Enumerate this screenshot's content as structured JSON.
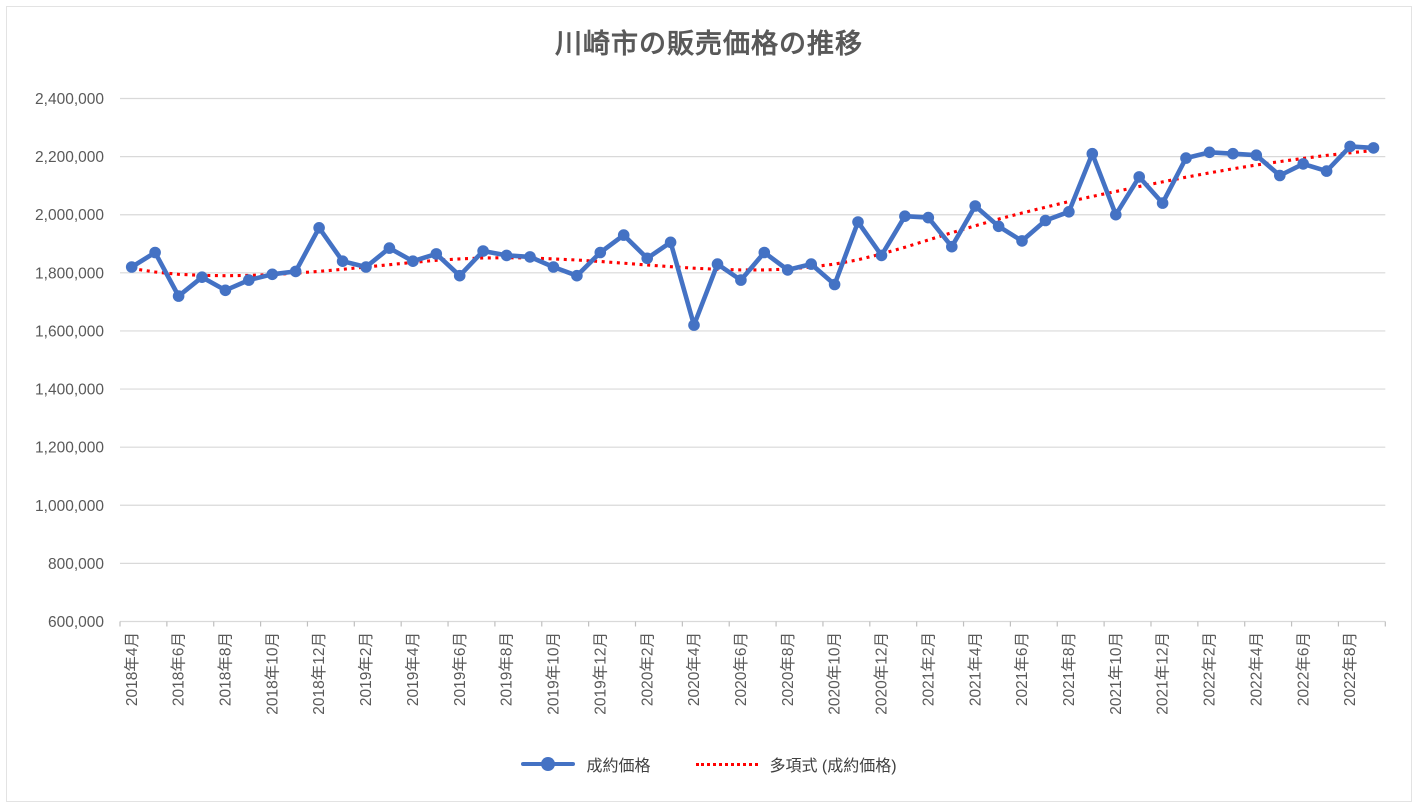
{
  "chart_data": {
    "type": "line",
    "title": "川崎市の販売価格の推移",
    "grid": true,
    "legend_position": "bottom",
    "ylim": [
      600000,
      2400000
    ],
    "y_tick_step": 200000,
    "y_ticks": [
      {
        "value": 600000,
        "label": "600,000"
      },
      {
        "value": 800000,
        "label": "800,000"
      },
      {
        "value": 1000000,
        "label": "1,000,000"
      },
      {
        "value": 1200000,
        "label": "1,200,000"
      },
      {
        "value": 1400000,
        "label": "1,400,000"
      },
      {
        "value": 1600000,
        "label": "1,600,000"
      },
      {
        "value": 1800000,
        "label": "1,800,000"
      },
      {
        "value": 2000000,
        "label": "2,000,000"
      },
      {
        "value": 2200000,
        "label": "2,200,000"
      },
      {
        "value": 2400000,
        "label": "2,400,000"
      }
    ],
    "x": [
      "2018年4月",
      "2018年5月",
      "2018年6月",
      "2018年7月",
      "2018年8月",
      "2018年9月",
      "2018年10月",
      "2018年11月",
      "2018年12月",
      "2019年1月",
      "2019年2月",
      "2019年3月",
      "2019年4月",
      "2019年5月",
      "2019年6月",
      "2019年7月",
      "2019年8月",
      "2019年9月",
      "2019年10月",
      "2019年11月",
      "2019年12月",
      "2020年1月",
      "2020年2月",
      "2020年3月",
      "2020年4月",
      "2020年5月",
      "2020年6月",
      "2020年7月",
      "2020年8月",
      "2020年9月",
      "2020年10月",
      "2020年11月",
      "2020年12月",
      "2021年1月",
      "2021年2月",
      "2021年3月",
      "2021年4月",
      "2021年5月",
      "2021年6月",
      "2021年7月",
      "2021年8月",
      "2021年9月",
      "2021年10月",
      "2021年11月",
      "2021年12月",
      "2022年1月",
      "2022年2月",
      "2022年3月",
      "2022年4月",
      "2022年5月",
      "2022年6月",
      "2022年7月",
      "2022年8月",
      "2022年9月"
    ],
    "x_tick_labels": [
      "2018年4月",
      "2018年6月",
      "2018年8月",
      "2018年10月",
      "2018年12月",
      "2019年2月",
      "2019年4月",
      "2019年6月",
      "2019年8月",
      "2019年10月",
      "2019年12月",
      "2020年2月",
      "2020年4月",
      "2020年6月",
      "2020年8月",
      "2020年10月",
      "2020年12月",
      "2021年2月",
      "2021年4月",
      "2021年6月",
      "2021年8月",
      "2021年10月",
      "2021年12月",
      "2022年2月",
      "2022年4月",
      "2022年6月",
      "2022年8月"
    ],
    "series": [
      {
        "name": "成約価格",
        "color": "#4472C4",
        "style": "solid-with-markers",
        "values": [
          1820000,
          1870000,
          1720000,
          1785000,
          1740000,
          1775000,
          1795000,
          1805000,
          1955000,
          1840000,
          1820000,
          1885000,
          1840000,
          1865000,
          1790000,
          1875000,
          1860000,
          1855000,
          1820000,
          1790000,
          1870000,
          1930000,
          1850000,
          1905000,
          1620000,
          1830000,
          1775000,
          1870000,
          1810000,
          1830000,
          1760000,
          1975000,
          1860000,
          1995000,
          1990000,
          1890000,
          2030000,
          1960000,
          1910000,
          1980000,
          2010000,
          2210000,
          2000000,
          2130000,
          2040000,
          2195000,
          2215000,
          2210000,
          2205000,
          2135000,
          2175000,
          2150000,
          2235000,
          2230000
        ]
      },
      {
        "name": "多項式 (成約価格)",
        "color": "#FF0000",
        "style": "dotted-trendline",
        "values": [
          1815000,
          1803000,
          1795000,
          1791000,
          1790000,
          1791000,
          1794000,
          1799000,
          1805000,
          1812000,
          1820000,
          1828000,
          1836000,
          1843000,
          1848000,
          1851000,
          1852000,
          1851000,
          1848000,
          1844000,
          1839000,
          1833000,
          1827000,
          1821000,
          1816000,
          1812000,
          1810000,
          1810000,
          1813000,
          1820000,
          1830000,
          1845000,
          1865000,
          1888000,
          1913000,
          1938000,
          1962000,
          1985000,
          2006000,
          2026000,
          2045000,
          2063000,
          2080000,
          2097000,
          2113000,
          2129000,
          2144000,
          2158000,
          2171000,
          2183000,
          2194000,
          2204000,
          2213000,
          2221000
        ]
      }
    ],
    "colors": {
      "series_blue": "#4472C4",
      "trend_red": "#FF0000",
      "gridline": "#D9D9D9",
      "axis_text": "#595959",
      "title_text": "#595959"
    }
  }
}
